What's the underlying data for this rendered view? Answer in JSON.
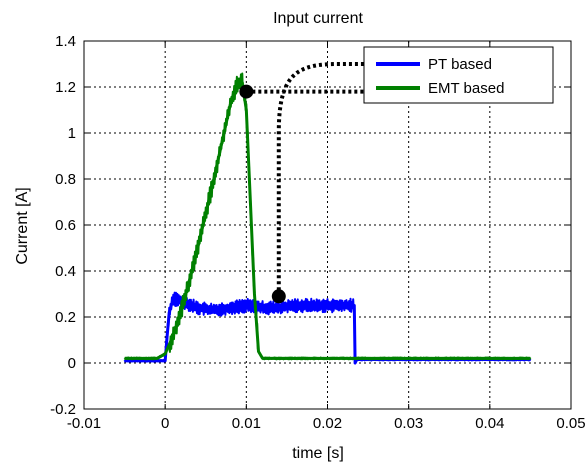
{
  "chart_data": {
    "type": "line",
    "title": "Input current",
    "xlabel": "time [s]",
    "ylabel": "Current [A]",
    "xlim": [
      -0.01,
      0.05
    ],
    "ylim": [
      -0.2,
      1.4
    ],
    "xticks": [
      -0.01,
      0,
      0.01,
      0.02,
      0.03,
      0.04,
      0.05
    ],
    "xtick_labels": [
      "-0.01",
      "0",
      "0.01",
      "0.02",
      "0.03",
      "0.04",
      "0.05"
    ],
    "yticks": [
      -0.2,
      0,
      0.2,
      0.4,
      0.6,
      0.8,
      1,
      1.2,
      1.4
    ],
    "ytick_labels": [
      "-0.2",
      "0",
      "0.2",
      "0.4",
      "0.6",
      "0.8",
      "1",
      "1.2",
      "1.4"
    ],
    "grid": true,
    "legend_position": "top-right",
    "series": [
      {
        "name": "PT based",
        "color": "#0000ff",
        "x": [
          -0.005,
          0.0,
          0.0002,
          0.0005,
          0.001,
          0.002,
          0.004,
          0.006,
          0.008,
          0.01,
          0.012,
          0.014,
          0.016,
          0.018,
          0.02,
          0.022,
          0.0233,
          0.0234,
          0.0236,
          0.03,
          0.04,
          0.045
        ],
        "y": [
          0.01,
          0.01,
          0.1,
          0.22,
          0.28,
          0.27,
          0.24,
          0.23,
          0.24,
          0.25,
          0.24,
          0.24,
          0.25,
          0.25,
          0.25,
          0.25,
          0.25,
          0.0,
          0.015,
          0.015,
          0.015,
          0.015
        ],
        "band": 0.03
      },
      {
        "name": "EMT based",
        "color": "#008000",
        "x": [
          -0.005,
          -0.001,
          0.0,
          0.001,
          0.002,
          0.003,
          0.004,
          0.005,
          0.006,
          0.007,
          0.008,
          0.0085,
          0.009,
          0.0095,
          0.01,
          0.0105,
          0.011,
          0.0115,
          0.012,
          0.02,
          0.03,
          0.04,
          0.045
        ],
        "y": [
          0.02,
          0.02,
          0.04,
          0.12,
          0.23,
          0.36,
          0.5,
          0.65,
          0.8,
          0.96,
          1.12,
          1.18,
          1.22,
          1.22,
          1.1,
          0.7,
          0.3,
          0.05,
          0.02,
          0.02,
          0.02,
          0.02,
          0.02
        ],
        "band": 0.04
      }
    ],
    "markers": [
      {
        "x": 0.01,
        "y": 1.18
      },
      {
        "x": 0.014,
        "y": 0.29
      }
    ],
    "annotation_color": "#000000"
  }
}
